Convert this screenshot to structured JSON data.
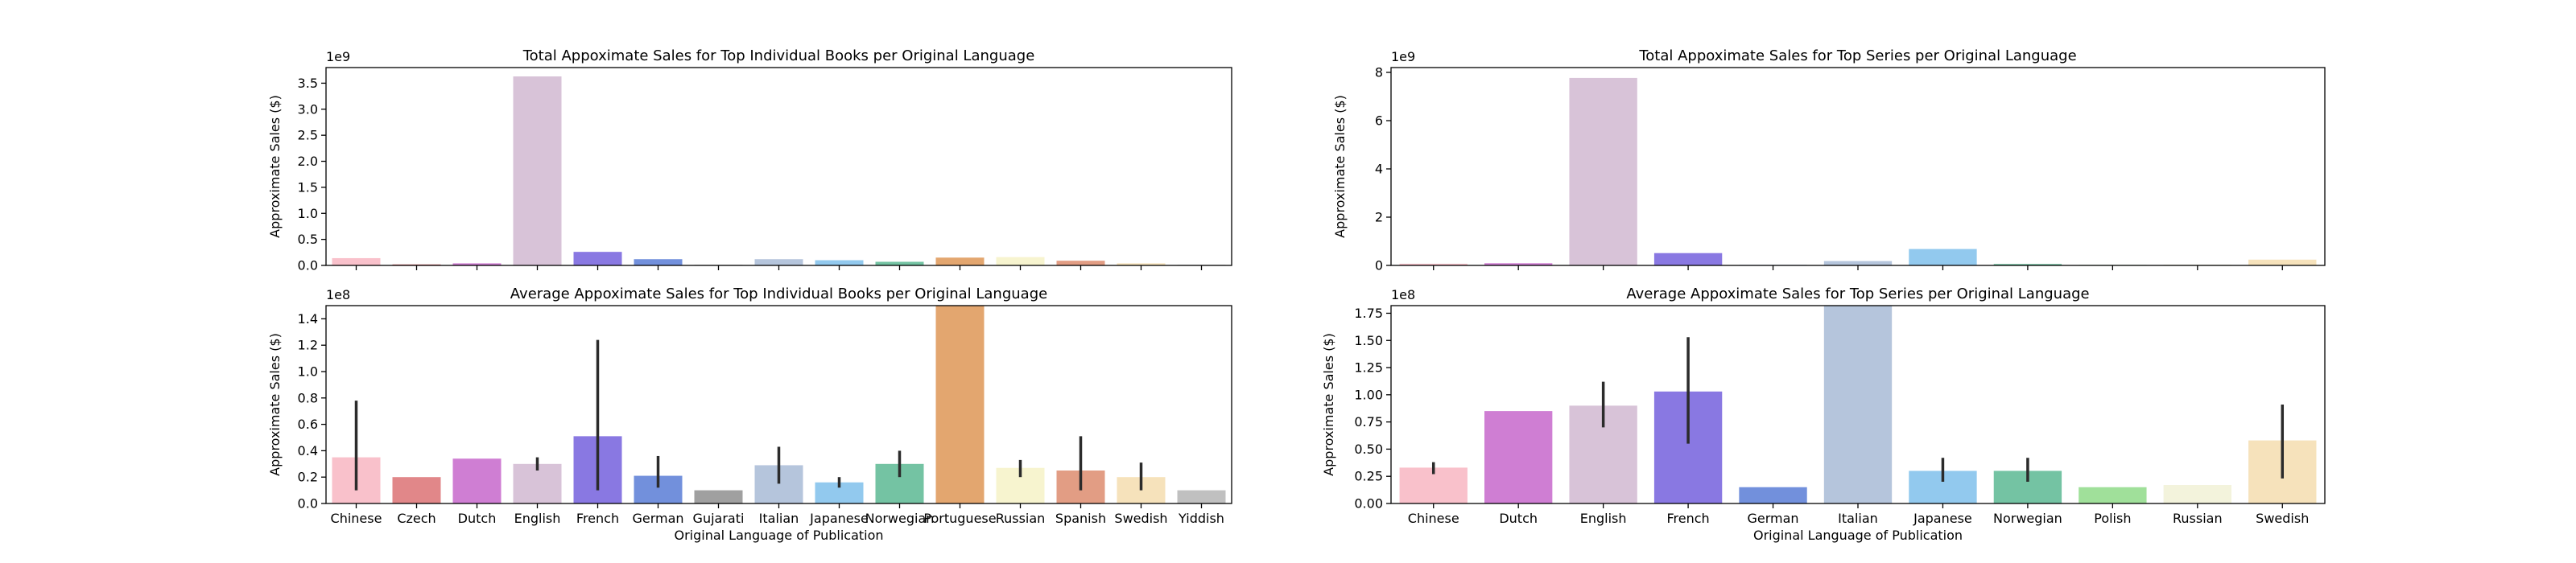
{
  "chart_data": [
    {
      "type": "bar",
      "title": "Total Appoximate Sales for Top Individual Books per Original Language",
      "xlabel": "",
      "ylabel": "Approximate Sales ($)",
      "offset_label": "1e9",
      "scale": 1000000000,
      "ylim": [
        0,
        3.8
      ],
      "yticks": [
        0.0,
        0.5,
        1.0,
        1.5,
        2.0,
        2.5,
        3.0,
        3.5
      ],
      "ytick_labels": [
        "0.0",
        "0.5",
        "1.0",
        "1.5",
        "2.0",
        "2.5",
        "3.0",
        "3.5"
      ],
      "categories": [
        "Chinese",
        "Czech",
        "Dutch",
        "English",
        "French",
        "German",
        "Gujarati",
        "Italian",
        "Japanese",
        "Norwegian",
        "Portuguese",
        "Russian",
        "Spanish",
        "Swedish",
        "Yiddish"
      ],
      "show_x_labels": false,
      "values": [
        0.14,
        0.02,
        0.04,
        3.63,
        0.26,
        0.12,
        0.01,
        0.12,
        0.1,
        0.07,
        0.15,
        0.16,
        0.09,
        0.04,
        0.01
      ],
      "colors": [
        "#f9c1cb",
        "#e18789",
        "#cf7ed3",
        "#d8c3d8",
        "#8978e2",
        "#7290dc",
        "#a0a0a0",
        "#b5c5dc",
        "#92c9ee",
        "#74c3a3",
        "#e3a66f",
        "#f7f4cf",
        "#e29d84",
        "#f6e2bb",
        "#c0c0c0"
      ]
    },
    {
      "type": "bar",
      "title": "Average Appoximate Sales for Top Individual Books per Original Language",
      "xlabel": "Original Language of Publication",
      "ylabel": "Approximate Sales ($)",
      "offset_label": "1e8",
      "scale": 100000000,
      "ylim": [
        0,
        1.5
      ],
      "yticks": [
        0.0,
        0.2,
        0.4,
        0.6,
        0.8,
        1.0,
        1.2,
        1.4
      ],
      "ytick_labels": [
        "0.0",
        "0.2",
        "0.4",
        "0.6",
        "0.8",
        "1.0",
        "1.2",
        "1.4"
      ],
      "categories": [
        "Chinese",
        "Czech",
        "Dutch",
        "English",
        "French",
        "German",
        "Gujarati",
        "Italian",
        "Japanese",
        "Norwegian",
        "Portuguese",
        "Russian",
        "Spanish",
        "Swedish",
        "Yiddish"
      ],
      "show_x_labels": true,
      "values": [
        0.35,
        0.2,
        0.34,
        0.3,
        0.51,
        0.21,
        0.1,
        0.29,
        0.16,
        0.3,
        1.5,
        0.27,
        0.25,
        0.2,
        0.1
      ],
      "errors": [
        [
          0.1,
          0.78
        ],
        null,
        null,
        [
          0.25,
          0.35
        ],
        [
          0.1,
          1.24
        ],
        [
          0.12,
          0.36
        ],
        null,
        [
          0.15,
          0.43
        ],
        [
          0.12,
          0.2
        ],
        [
          0.2,
          0.4
        ],
        null,
        [
          0.2,
          0.33
        ],
        [
          0.1,
          0.51
        ],
        [
          0.1,
          0.31
        ],
        null
      ],
      "colors": [
        "#f9c1cb",
        "#e18789",
        "#cf7ed3",
        "#d8c3d8",
        "#8978e2",
        "#7290dc",
        "#a0a0a0",
        "#b5c5dc",
        "#92c9ee",
        "#74c3a3",
        "#e3a66f",
        "#f7f4cf",
        "#e29d84",
        "#f6e2bb",
        "#c0c0c0"
      ]
    },
    {
      "type": "bar",
      "title": "Total Appoximate Sales for Top Series per Original Language",
      "xlabel": "",
      "ylabel": "Approximate Sales ($)",
      "offset_label": "1e9",
      "scale": 1000000000,
      "ylim": [
        0,
        8.2
      ],
      "yticks": [
        0,
        2,
        4,
        6,
        8
      ],
      "ytick_labels": [
        "0",
        "2",
        "4",
        "6",
        "8"
      ],
      "categories": [
        "Chinese",
        "Dutch",
        "English",
        "French",
        "German",
        "Italian",
        "Japanese",
        "Norwegian",
        "Polish",
        "Russian",
        "Swedish"
      ],
      "show_x_labels": false,
      "values": [
        0.07,
        0.09,
        7.77,
        0.51,
        0.02,
        0.18,
        0.68,
        0.06,
        0.02,
        0.03,
        0.24
      ],
      "colors": [
        "#f9c1cb",
        "#cf7ed3",
        "#d8c3d8",
        "#8978e2",
        "#7290dc",
        "#b5c5dc",
        "#92c9ee",
        "#74c3a3",
        "#a0e09a",
        "#f3f3dc",
        "#f6e2bb"
      ]
    },
    {
      "type": "bar",
      "title": "Average Appoximate Sales for Top Series per Original Language",
      "xlabel": "Original Language of Publication",
      "ylabel": "Approximate Sales ($)",
      "offset_label": "1e8",
      "scale": 100000000,
      "ylim": [
        0,
        1.82
      ],
      "yticks": [
        0.0,
        0.25,
        0.5,
        0.75,
        1.0,
        1.25,
        1.5,
        1.75
      ],
      "ytick_labels": [
        "0.00",
        "0.25",
        "0.50",
        "0.75",
        "1.00",
        "1.25",
        "1.50",
        "1.75"
      ],
      "categories": [
        "Chinese",
        "Dutch",
        "English",
        "French",
        "German",
        "Italian",
        "Japanese",
        "Norwegian",
        "Polish",
        "Russian",
        "Swedish"
      ],
      "show_x_labels": true,
      "values": [
        0.33,
        0.85,
        0.9,
        1.03,
        0.15,
        1.82,
        0.3,
        0.3,
        0.15,
        0.17,
        0.58
      ],
      "errors": [
        [
          0.27,
          0.38
        ],
        null,
        [
          0.7,
          1.12
        ],
        [
          0.55,
          1.53
        ],
        null,
        null,
        [
          0.2,
          0.42
        ],
        [
          0.2,
          0.42
        ],
        null,
        null,
        [
          0.23,
          0.91
        ]
      ],
      "colors": [
        "#f9c1cb",
        "#cf7ed3",
        "#d8c3d8",
        "#8978e2",
        "#7290dc",
        "#b5c5dc",
        "#92c9ee",
        "#74c3a3",
        "#a0e09a",
        "#f3f3dc",
        "#f6e2bb"
      ]
    }
  ]
}
